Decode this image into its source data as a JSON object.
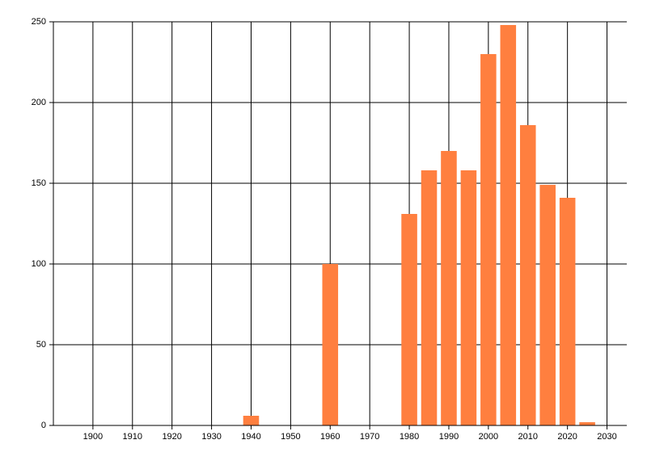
{
  "chart_data": {
    "type": "bar",
    "x": [
      1940,
      1960,
      1980,
      1985,
      1990,
      1995,
      2000,
      2005,
      2010,
      2015,
      2020,
      2025
    ],
    "values": [
      6,
      100,
      131,
      158,
      170,
      158,
      230,
      248,
      186,
      149,
      141,
      2
    ],
    "color": "#ff7f3f",
    "xlim": [
      1890,
      2035
    ],
    "xticks": [
      1900,
      1910,
      1920,
      1930,
      1940,
      1950,
      1960,
      1970,
      1980,
      1990,
      2000,
      2010,
      2020,
      2030
    ],
    "ylim": [
      0,
      250
    ],
    "yticks": [
      0,
      50,
      100,
      150,
      200,
      250
    ],
    "grid": true
  }
}
